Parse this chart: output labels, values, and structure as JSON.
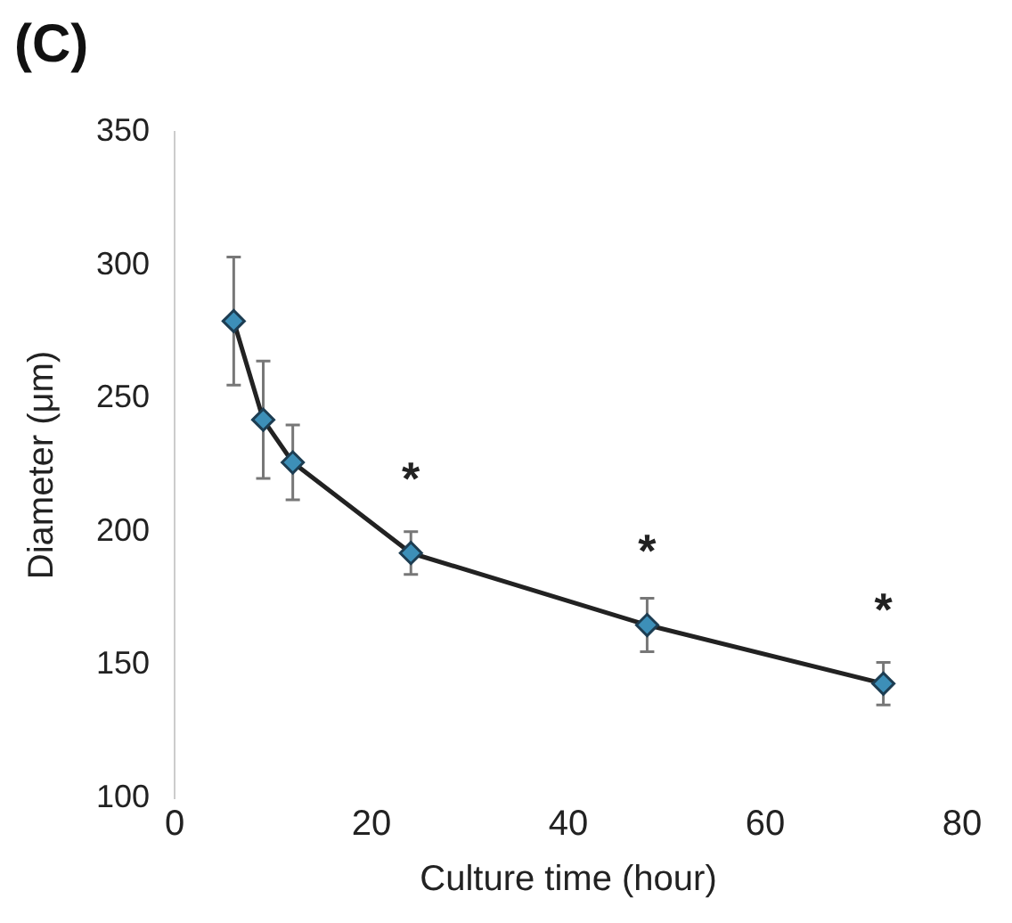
{
  "chart_data": {
    "type": "line",
    "title": "(C)",
    "xlabel": "Culture time (hour)",
    "ylabel": "Diameter (μm)",
    "x": [
      6,
      9,
      12,
      24,
      48,
      72
    ],
    "series": [
      {
        "color": "#222222",
        "values": [
          279,
          242,
          226,
          192,
          165,
          143
        ],
        "errors": [
          24,
          22,
          14,
          8,
          10,
          8
        ]
      }
    ],
    "xlim": [
      0,
      80
    ],
    "xticks": [
      0,
      20,
      40,
      60,
      80
    ],
    "ylim": [
      100,
      350
    ],
    "yticks": [
      100,
      150,
      200,
      250,
      300,
      350
    ],
    "annotations": [
      {
        "text": "*",
        "x": 24,
        "y": 192
      },
      {
        "text": "*",
        "x": 48,
        "y": 165
      },
      {
        "text": "*",
        "x": 72,
        "y": 143
      }
    ],
    "marker": "diamond",
    "line_style": "solid",
    "grid": false,
    "legend": false
  }
}
